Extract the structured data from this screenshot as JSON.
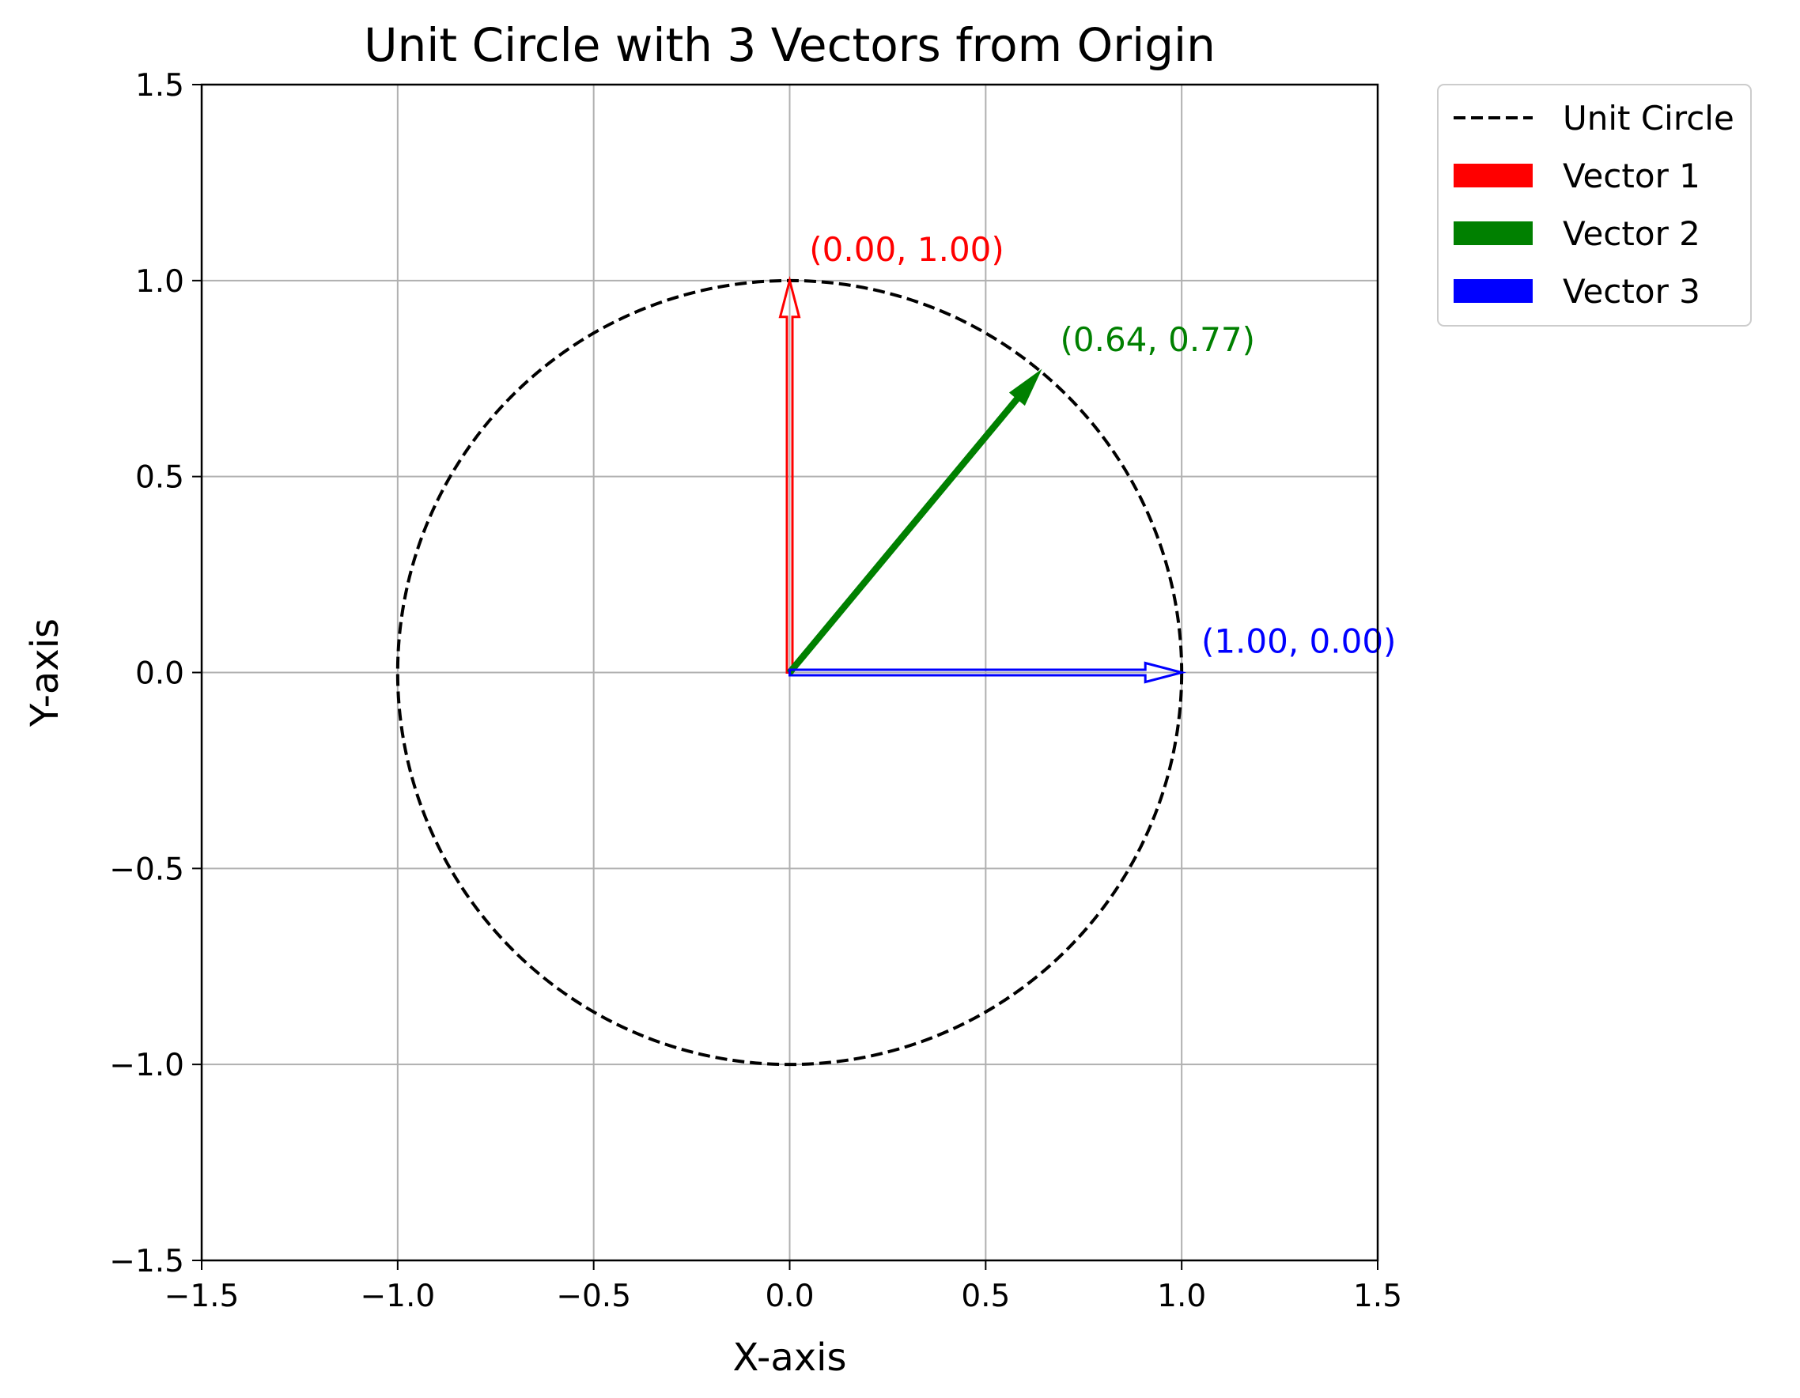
{
  "chart_data": {
    "type": "line",
    "title": "Unit Circle with 3 Vectors from Origin",
    "xlabel": "X-axis",
    "ylabel": "Y-axis",
    "xlim": [
      -1.5,
      1.5
    ],
    "ylim": [
      -1.5,
      1.5
    ],
    "xticks": [
      -1.5,
      -1.0,
      -0.5,
      0.0,
      0.5,
      1.0,
      1.5
    ],
    "yticks": [
      -1.5,
      -1.0,
      -0.5,
      0.0,
      0.5,
      1.0,
      1.5
    ],
    "xtick_labels": [
      "−1.5",
      "−1.0",
      "−0.5",
      "0.0",
      "0.5",
      "1.0",
      "1.5"
    ],
    "ytick_labels": [
      "−1.5",
      "−1.0",
      "−0.5",
      "0.0",
      "0.5",
      "1.0",
      "1.5"
    ],
    "grid": true,
    "legend_position": "outside-top-right",
    "circle": {
      "name": "Unit Circle",
      "center": [
        0,
        0
      ],
      "radius": 1,
      "style": "dashed",
      "color": "#000000"
    },
    "vectors": [
      {
        "name": "Vector 1",
        "x": 0.0,
        "y": 1.0,
        "label": "(0.00, 1.00)",
        "color": "#ff0000"
      },
      {
        "name": "Vector 2",
        "x": 0.64,
        "y": 0.77,
        "label": "(0.64, 0.77)",
        "color": "#008000"
      },
      {
        "name": "Vector 3",
        "x": 1.0,
        "y": 0.0,
        "label": "(1.00, 0.00)",
        "color": "#0000ff"
      }
    ]
  }
}
